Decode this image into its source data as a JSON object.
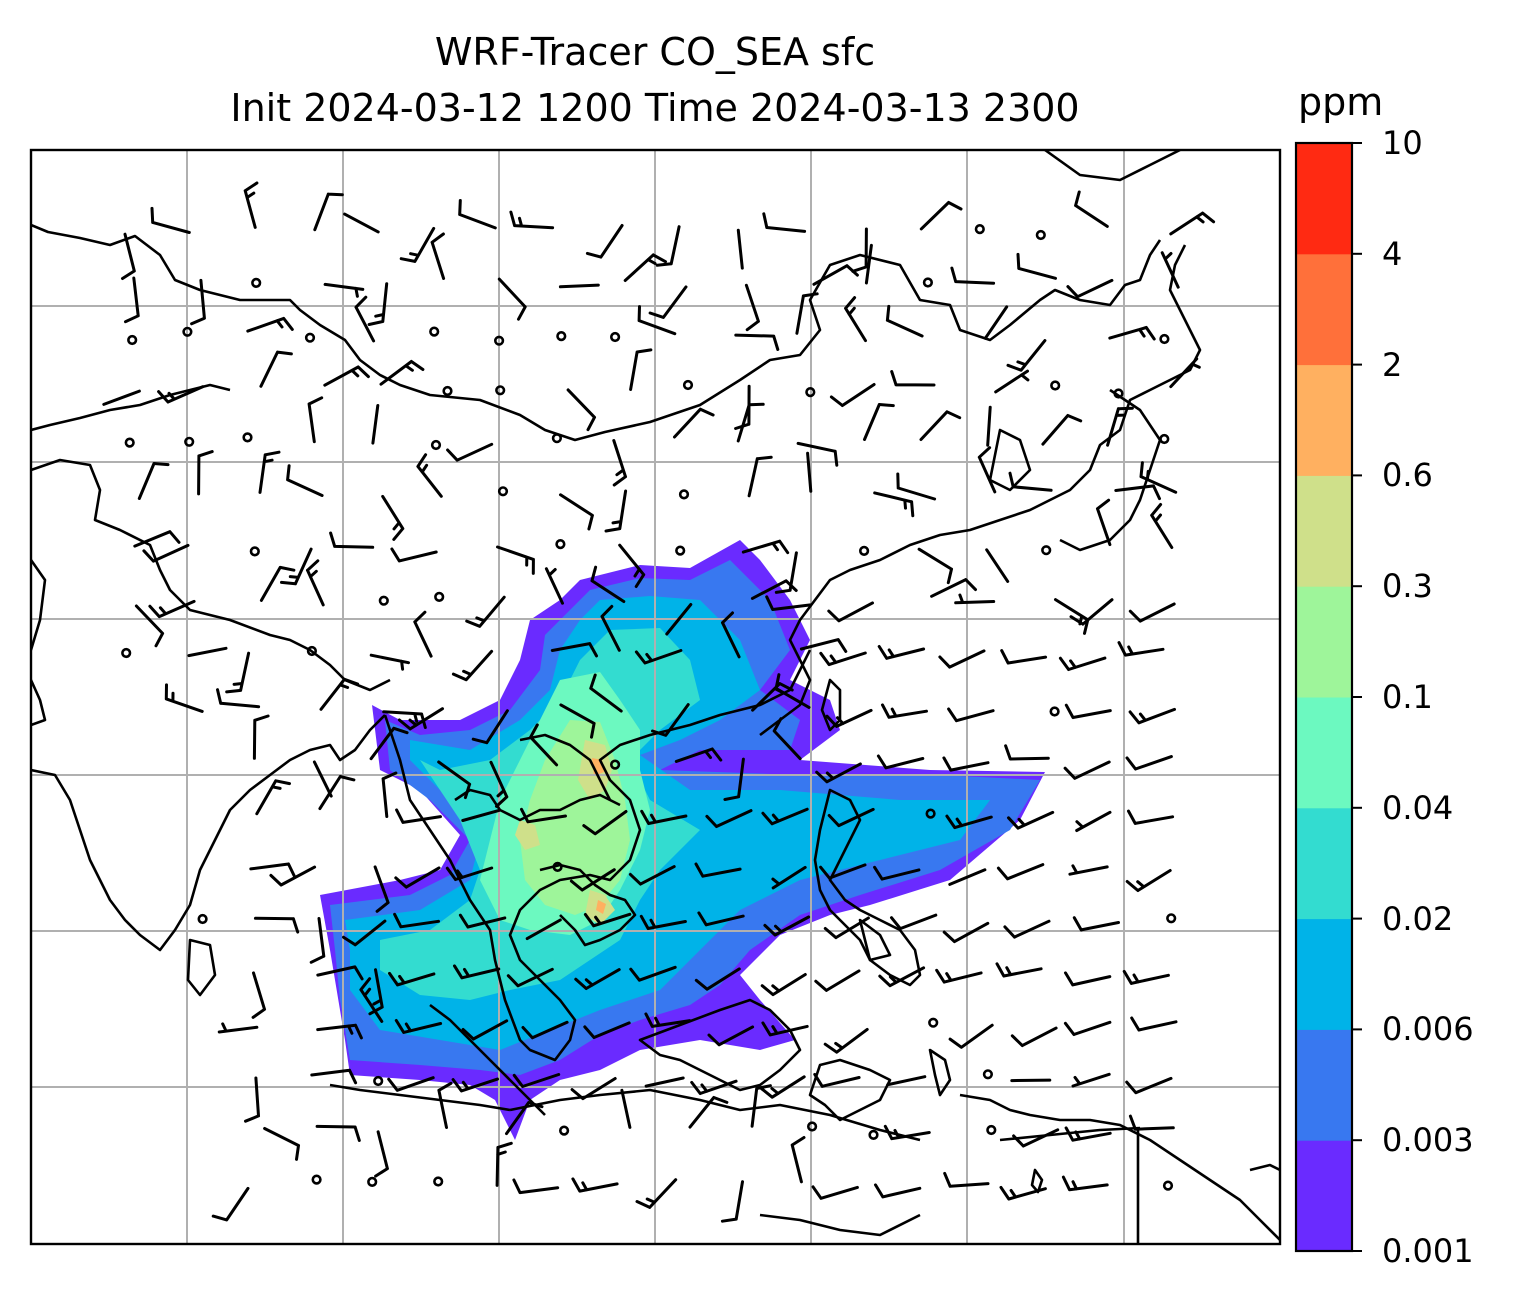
{
  "title": {
    "line1": "WRF-Tracer CO_SEA sfc",
    "line2": "Init 2024-03-12 1200 Time 2024-03-13 2300"
  },
  "colorbar": {
    "label": "ppm",
    "levels": [
      "0.001",
      "0.003",
      "0.006",
      "0.02",
      "0.04",
      "0.1",
      "0.3",
      "0.6",
      "2",
      "4",
      "10"
    ],
    "colors": [
      "#6a2bff",
      "#3878f0",
      "#00b3e8",
      "#33dcd0",
      "#6cf9c0",
      "#9ef59a",
      "#cfe08a",
      "#ffb060",
      "#ff703a",
      "#ff2a12"
    ]
  },
  "map": {
    "colors": {
      "coastline": "#000000",
      "gridline": "#b0b0b0",
      "frame": "#000000",
      "barb": "#000000"
    }
  }
}
